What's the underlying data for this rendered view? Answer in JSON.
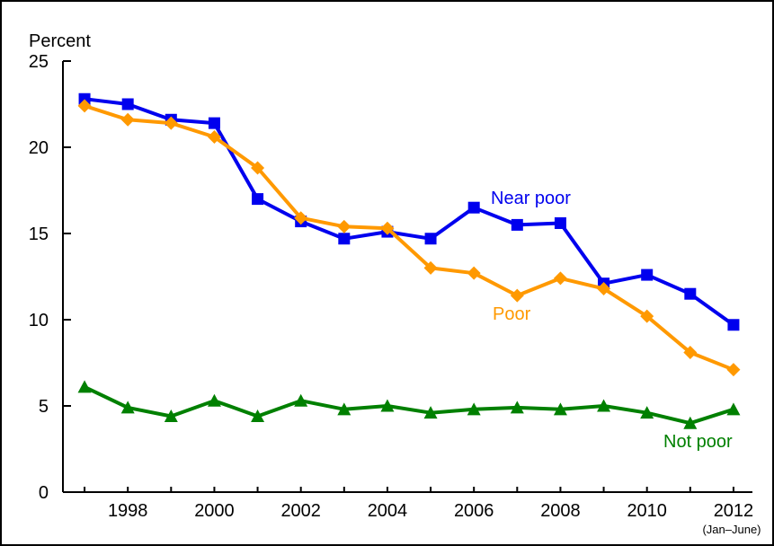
{
  "chart_data": {
    "type": "line",
    "ylabel": "Percent",
    "ylim": [
      0,
      25
    ],
    "y_ticks": [
      "0",
      "5",
      "10",
      "15",
      "20",
      "25"
    ],
    "x": [
      1997,
      1998,
      1999,
      2000,
      2001,
      2002,
      2003,
      2004,
      2005,
      2006,
      2007,
      2008,
      2009,
      2010,
      2011,
      2012
    ],
    "xlim": [
      1996.5,
      2012.5
    ],
    "x_ticks": [
      "1998",
      "2000",
      "2002",
      "2004",
      "2006",
      "2008",
      "2010",
      "2012"
    ],
    "x_note": "(Jan–June)",
    "grid": false,
    "series": [
      {
        "name": "Near poor",
        "color": "#0000ee",
        "marker": "square",
        "values": [
          22.8,
          22.5,
          21.6,
          21.4,
          17.0,
          15.7,
          14.7,
          15.1,
          14.7,
          16.5,
          15.5,
          15.6,
          12.1,
          12.6,
          11.5,
          9.7
        ]
      },
      {
        "name": "Poor",
        "color": "#ff9900",
        "marker": "diamond",
        "values": [
          22.4,
          21.6,
          21.4,
          20.6,
          18.8,
          15.9,
          15.4,
          15.3,
          13.0,
          12.7,
          11.4,
          12.4,
          11.8,
          10.2,
          8.1,
          7.1
        ]
      },
      {
        "name": "Not poor",
        "color": "#008000",
        "marker": "triangle",
        "values": [
          6.1,
          4.9,
          4.4,
          5.3,
          4.4,
          5.3,
          4.8,
          5.0,
          4.6,
          4.8,
          4.9,
          4.8,
          5.0,
          4.6,
          4.0,
          4.8
        ]
      }
    ]
  }
}
